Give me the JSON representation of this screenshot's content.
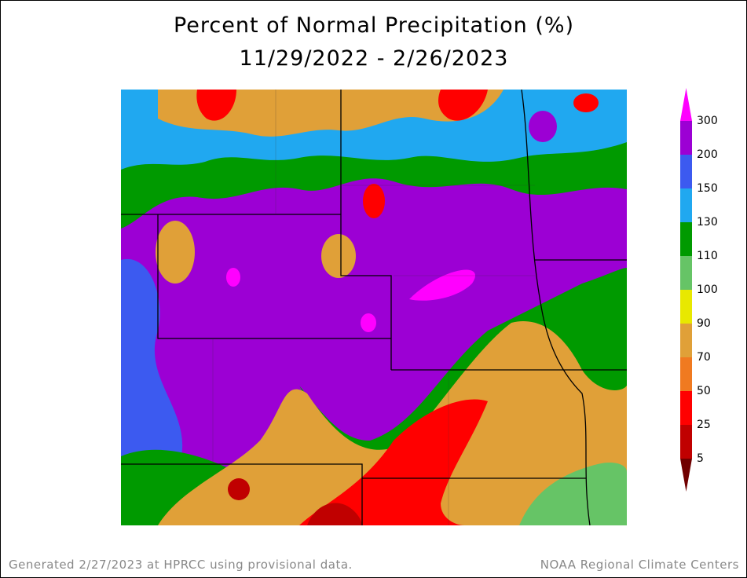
{
  "title": {
    "line1": "Percent of Normal Precipitation (%)",
    "line2": "11/29/2022 - 2/26/2023"
  },
  "legend": {
    "labels": [
      300,
      200,
      150,
      130,
      110,
      100,
      90,
      70,
      50,
      25,
      5
    ],
    "colors": [
      "#ff00ff",
      "#9c00d4",
      "#3c5af0",
      "#20a8f0",
      "#009a00",
      "#66c466",
      "#e8e800",
      "#e0a038",
      "#f07a20",
      "#ff0000",
      "#c00000",
      "#700000"
    ]
  },
  "footer": {
    "left": "Generated 2/27/2023 at HPRCC using provisional data.",
    "right": "NOAA Regional Climate Centers"
  }
}
